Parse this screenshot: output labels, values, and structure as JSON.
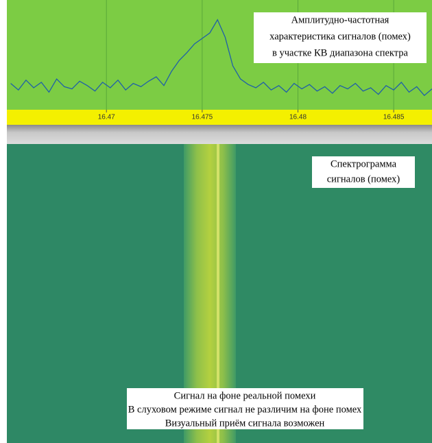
{
  "chart_data": {
    "type": "line",
    "x": [
      16.465,
      16.4654,
      16.4658,
      16.4662,
      16.4666,
      16.467,
      16.4674,
      16.4678,
      16.4682,
      16.4686,
      16.469,
      16.4694,
      16.4698,
      16.4702,
      16.4706,
      16.471,
      16.4714,
      16.4718,
      16.4722,
      16.4726,
      16.473,
      16.4734,
      16.4738,
      16.4742,
      16.4746,
      16.475,
      16.4754,
      16.4758,
      16.4762,
      16.4766,
      16.477,
      16.4774,
      16.4778,
      16.4782,
      16.4786,
      16.479,
      16.4794,
      16.4798,
      16.4802,
      16.4806,
      16.481,
      16.4814,
      16.4818,
      16.4822,
      16.4826,
      16.483,
      16.4834,
      16.4838,
      16.4842,
      16.4846,
      16.485,
      16.4854,
      16.4858,
      16.4862,
      16.4866,
      16.487
    ],
    "series": [
      {
        "color": "#1f5fa8",
        "values": [
          24,
          18,
          27,
          20,
          25,
          16,
          28,
          21,
          19,
          26,
          22,
          17,
          25,
          20,
          27,
          18,
          24,
          21,
          26,
          30,
          22,
          35,
          45,
          52,
          60,
          65,
          70,
          82,
          66,
          40,
          28,
          23,
          20,
          25,
          18,
          22,
          16,
          24,
          19,
          23,
          17,
          21,
          15,
          22,
          19,
          24,
          17,
          20,
          14,
          22,
          18,
          25,
          16,
          21,
          13,
          19
        ]
      }
    ],
    "xlim": [
      16.4648,
      16.487
    ],
    "xticks": [
      16.47,
      16.475,
      16.48,
      16.485
    ],
    "ylim": [
      0,
      100
    ],
    "grid": true,
    "annotations": [
      [
        "Амплитудно-частотная",
        "характеристика сигналов (помех)",
        "в участке КВ диапазона спектра"
      ],
      [
        "Спектрограмма",
        "сигналов (помех)"
      ],
      [
        "Сигнал на фоне реальной помехи",
        "В слуховом режиме сигнал не различим на фоне помех",
        "Визуальный приём сигнала возможен"
      ]
    ]
  }
}
